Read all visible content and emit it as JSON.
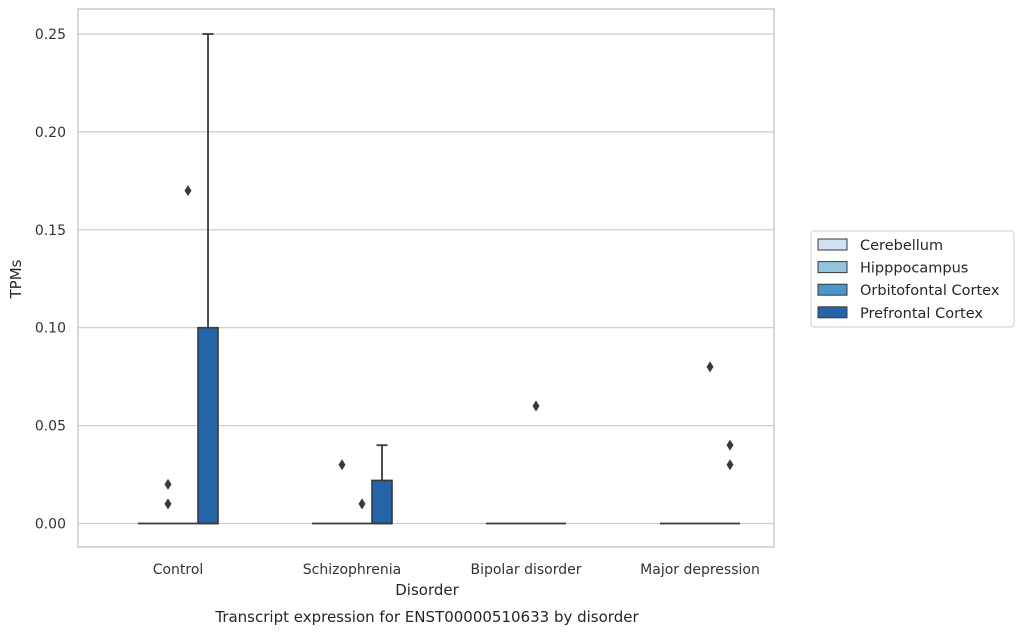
{
  "chart_data": {
    "type": "boxplot",
    "title": "Transcript expression for ENST00000510633 by disorder",
    "xlabel": "Disorder",
    "ylabel": "TPMs",
    "ylim": [
      -0.012,
      0.263
    ],
    "yticks": [
      "0.00",
      "0.05",
      "0.10",
      "0.15",
      "0.20",
      "0.25"
    ],
    "ytick_values": [
      0,
      0.05,
      0.1,
      0.15,
      0.2,
      0.25
    ],
    "grid": "horizontal",
    "legend_placement": "right",
    "categories": [
      "Control",
      "Schizophrenia",
      "Bipolar disorder",
      "Major depression"
    ],
    "series": [
      {
        "name": "Cerebellum",
        "color": "#d0e1f2",
        "boxes": [
          {
            "q1": 0,
            "median": 0,
            "q3": 0,
            "whisker_low": 0,
            "whisker_high": 0,
            "outliers": []
          },
          {
            "q1": 0,
            "median": 0,
            "q3": 0,
            "whisker_low": 0,
            "whisker_high": 0,
            "outliers": []
          },
          {
            "q1": 0,
            "median": 0,
            "q3": 0,
            "whisker_low": 0,
            "whisker_high": 0,
            "outliers": []
          },
          {
            "q1": 0,
            "median": 0,
            "q3": 0,
            "whisker_low": 0,
            "whisker_high": 0,
            "outliers": []
          }
        ]
      },
      {
        "name": "Hipppocampus",
        "color": "#94c4df",
        "boxes": [
          {
            "q1": 0,
            "median": 0,
            "q3": 0,
            "whisker_low": 0,
            "whisker_high": 0,
            "outliers": [
              0.01,
              0.02
            ]
          },
          {
            "q1": 0,
            "median": 0,
            "q3": 0,
            "whisker_low": 0,
            "whisker_high": 0,
            "outliers": [
              0.03
            ]
          },
          {
            "q1": 0,
            "median": 0,
            "q3": 0,
            "whisker_low": 0,
            "whisker_high": 0,
            "outliers": []
          },
          {
            "q1": 0,
            "median": 0,
            "q3": 0,
            "whisker_low": 0,
            "whisker_high": 0,
            "outliers": []
          }
        ]
      },
      {
        "name": "Orbitofontal Cortex",
        "color": "#4a98c9",
        "boxes": [
          {
            "q1": 0,
            "median": 0,
            "q3": 0,
            "whisker_low": 0,
            "whisker_high": 0,
            "outliers": [
              0.17
            ]
          },
          {
            "q1": 0,
            "median": 0,
            "q3": 0,
            "whisker_low": 0,
            "whisker_high": 0,
            "outliers": [
              0.01
            ]
          },
          {
            "q1": 0,
            "median": 0,
            "q3": 0,
            "whisker_low": 0,
            "whisker_high": 0,
            "outliers": [
              0.06
            ]
          },
          {
            "q1": 0,
            "median": 0,
            "q3": 0,
            "whisker_low": 0,
            "whisker_high": 0,
            "outliers": [
              0.08
            ]
          }
        ]
      },
      {
        "name": "Prefrontal Cortex",
        "color": "#2464a8",
        "boxes": [
          {
            "q1": 0,
            "median": 0,
            "q3": 0.1,
            "whisker_low": 0,
            "whisker_high": 0.25,
            "outliers": []
          },
          {
            "q1": 0,
            "median": 0,
            "q3": 0.022,
            "whisker_low": 0,
            "whisker_high": 0.04,
            "outliers": []
          },
          {
            "q1": 0,
            "median": 0,
            "q3": 0,
            "whisker_low": 0,
            "whisker_high": 0,
            "outliers": []
          },
          {
            "q1": 0,
            "median": 0,
            "q3": 0,
            "whisker_low": 0,
            "whisker_high": 0,
            "outliers": [
              0.03,
              0.04
            ]
          }
        ]
      }
    ]
  }
}
